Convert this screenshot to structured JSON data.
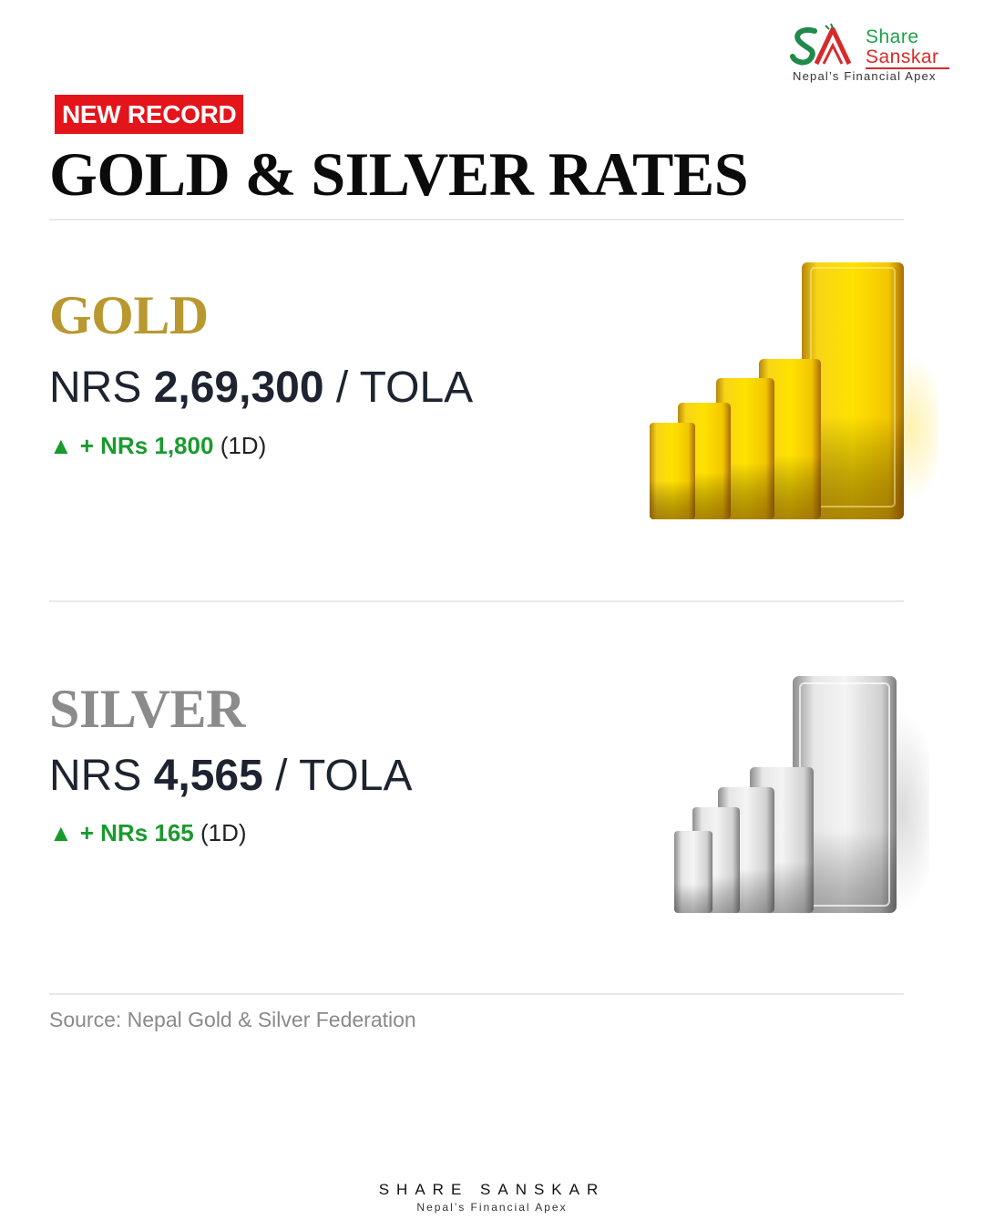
{
  "brand": {
    "logo_word1": "Share",
    "logo_word2": "Sanskar",
    "tagline": "Nepal’s Financial Apex",
    "footer_name": "SHARE SANSKAR",
    "footer_tagline": "Nepal’s Financial Apex"
  },
  "header": {
    "badge": "NEW RECORD",
    "title": "GOLD & SILVER RATES"
  },
  "gold": {
    "name": "GOLD",
    "currency": "NRS",
    "price": "2,69,300",
    "unit": "/ TOLA",
    "change_icon": "triangle-up-icon",
    "change_amount": "+ NRs 1,800",
    "change_period": "(1D)"
  },
  "silver": {
    "name": "SILVER",
    "currency": "NRS",
    "price": "4,565",
    "unit": "/ TOLA",
    "change_icon": "triangle-up-icon",
    "change_amount": "+ NRs 165",
    "change_period": "(1D)"
  },
  "source": "Source: Nepal Gold & Silver Federation",
  "colors": {
    "badge_red": "#e4141b",
    "gold_text": "#b9982f",
    "silver_text": "#8b8b8b",
    "positive_green": "#1a9a2e"
  }
}
